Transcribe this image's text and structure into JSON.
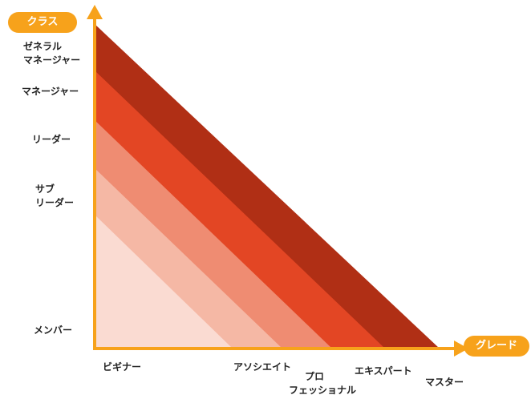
{
  "colors": {
    "axis": "#f7a21b",
    "bands": [
      "#fadbd2",
      "#f5b8a5",
      "#ef8c72",
      "#e34624",
      "#b02f15"
    ]
  },
  "axes": {
    "y_title": "クラス",
    "x_title": "グレード"
  },
  "classes": [
    {
      "lines": [
        "ゼネラル",
        "マネージャー"
      ]
    },
    {
      "lines": [
        "マネージャー"
      ]
    },
    {
      "lines": [
        "リーダー"
      ]
    },
    {
      "lines": [
        "サブ",
        "リーダー"
      ]
    },
    {
      "lines": [
        "メンバー"
      ]
    }
  ],
  "grades": [
    {
      "lines": [
        "ビギナー"
      ]
    },
    {
      "lines": [
        "アソシエイト"
      ]
    },
    {
      "lines": [
        "プロ",
        "フェッショナル"
      ]
    },
    {
      "lines": [
        "エキスパート"
      ]
    },
    {
      "lines": [
        "マスター"
      ]
    }
  ]
}
